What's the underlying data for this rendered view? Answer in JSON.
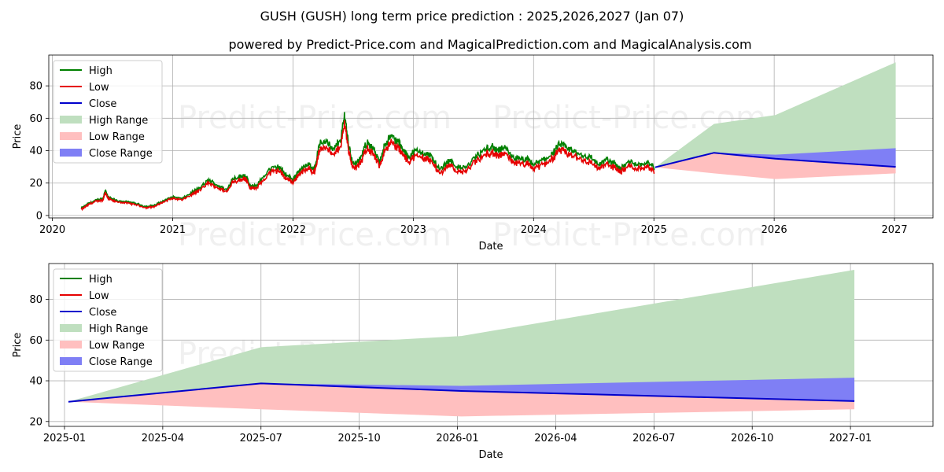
{
  "title": "GUSH (GUSH) long term price prediction : 2025,2026,2027 (Jan 07)",
  "subtitle": "powered by Predict-Price.com and MagicalPrediction.com and MagicalAnalysis.com",
  "watermark": "Predict-Price.com",
  "colors": {
    "high": "#008000",
    "low": "#e60000",
    "close": "#0000cc",
    "high_range": "#bfdfbf",
    "low_range": "#ffbfbf",
    "close_range": "#7f7ff5"
  },
  "chart_data": [
    {
      "type": "line",
      "name": "long-term-overview",
      "xlabel": "Date",
      "ylabel": "Price",
      "xlim": [
        2019.97,
        2027.32
      ],
      "ylim": [
        -1.5,
        99
      ],
      "x_ticks": [
        2020,
        2021,
        2022,
        2023,
        2024,
        2025,
        2026,
        2027
      ],
      "x_tick_labels": [
        "2020",
        "2021",
        "2022",
        "2023",
        "2024",
        "2025",
        "2026",
        "2027"
      ],
      "y_ticks": [
        0,
        20,
        40,
        60,
        80
      ],
      "y_tick_labels": [
        "0",
        "20",
        "40",
        "60",
        "80"
      ],
      "grid": true,
      "legend": [
        "High",
        "Low",
        "Close",
        "High Range",
        "Low Range",
        "Close Range"
      ],
      "legend_position": "top-left",
      "history_anchors": {
        "x": [
          2020.24,
          2020.3,
          2020.36,
          2020.42,
          2020.44,
          2020.46,
          2020.52,
          2020.62,
          2020.7,
          2020.78,
          2020.85,
          2020.93,
          2021.0,
          2021.08,
          2021.17,
          2021.22,
          2021.3,
          2021.37,
          2021.45,
          2021.5,
          2021.56,
          2021.6,
          2021.65,
          2021.7,
          2021.8,
          2021.88,
          2021.93,
          2022.0,
          2022.05,
          2022.13,
          2022.18,
          2022.22,
          2022.28,
          2022.33,
          2022.4,
          2022.43,
          2022.46,
          2022.5,
          2022.55,
          2022.62,
          2022.67,
          2022.72,
          2022.76,
          2022.82,
          2022.88,
          2022.92,
          2022.96,
          2023.02,
          2023.1,
          2023.15,
          2023.22,
          2023.3,
          2023.38,
          2023.45,
          2023.52,
          2023.6,
          2023.65,
          2023.7,
          2023.75,
          2023.82,
          2023.88,
          2023.95,
          2024.0,
          2024.08,
          2024.15,
          2024.22,
          2024.28,
          2024.33,
          2024.4,
          2024.48,
          2024.55,
          2024.6,
          2024.67,
          2024.72,
          2024.8,
          2024.88,
          2024.95,
          2025.01
        ],
        "close": [
          4,
          7,
          9,
          10,
          15,
          11,
          9,
          8,
          7,
          5,
          6,
          9,
          11,
          10,
          14,
          16,
          21,
          18,
          15,
          22,
          23,
          24,
          17,
          18,
          27,
          29,
          25,
          21,
          27,
          30,
          28,
          42,
          45,
          38,
          46,
          60,
          43,
          30,
          32,
          44,
          39,
          31,
          42,
          47,
          43,
          38,
          35,
          38,
          37,
          35,
          27,
          33,
          28,
          29,
          35,
          39,
          41,
          38,
          40,
          35,
          33,
          33,
          30,
          33,
          36,
          42,
          40,
          38,
          36,
          34,
          30,
          33,
          31,
          28,
          32,
          30,
          32,
          28
        ]
      },
      "forecast": {
        "x": [
          2025.01,
          2025.5,
          2026.01,
          2027.01
        ],
        "close": [
          29.7,
          38.7,
          35.0,
          30.0
        ],
        "high_range": [
          29.7,
          56.5,
          62.0,
          94.5
        ],
        "low_range": [
          29.7,
          26.0,
          22.5,
          26.0
        ],
        "close_range_upper": [
          29.7,
          38.7,
          37.5,
          41.5
        ]
      }
    },
    {
      "type": "area",
      "name": "forecast-detail",
      "xlabel": "Date",
      "ylabel": "Price",
      "xlim": [
        2024.96,
        2027.21
      ],
      "ylim": [
        17.6,
        97.6
      ],
      "x_ticks": [
        2025.0,
        2025.25,
        2025.5,
        2025.75,
        2026.0,
        2026.25,
        2026.5,
        2026.75,
        2027.0
      ],
      "x_tick_labels": [
        "2025-01",
        "2025-04",
        "2025-07",
        "2025-10",
        "2026-01",
        "2026-04",
        "2026-07",
        "2026-10",
        "2027-01"
      ],
      "y_ticks": [
        20,
        40,
        60,
        80
      ],
      "y_tick_labels": [
        "20",
        "40",
        "60",
        "80"
      ],
      "grid": true,
      "legend": [
        "High",
        "Low",
        "Close",
        "High Range",
        "Low Range",
        "Close Range"
      ],
      "legend_position": "top-left",
      "series": [
        {
          "name": "Close",
          "x": [
            2025.01,
            2025.5,
            2026.01,
            2027.01
          ],
          "values": [
            29.7,
            38.7,
            35.0,
            30.0
          ]
        },
        {
          "name": "High Range",
          "x": [
            2025.01,
            2025.5,
            2026.01,
            2027.01
          ],
          "values": [
            29.7,
            56.5,
            62.0,
            94.5
          ]
        },
        {
          "name": "Low Range",
          "x": [
            2025.01,
            2025.5,
            2026.01,
            2027.01
          ],
          "values": [
            29.7,
            26.0,
            22.5,
            26.0
          ]
        },
        {
          "name": "Close Range",
          "x": [
            2025.01,
            2025.5,
            2026.01,
            2027.01
          ],
          "values": [
            29.7,
            38.7,
            37.5,
            41.5
          ]
        }
      ]
    }
  ]
}
